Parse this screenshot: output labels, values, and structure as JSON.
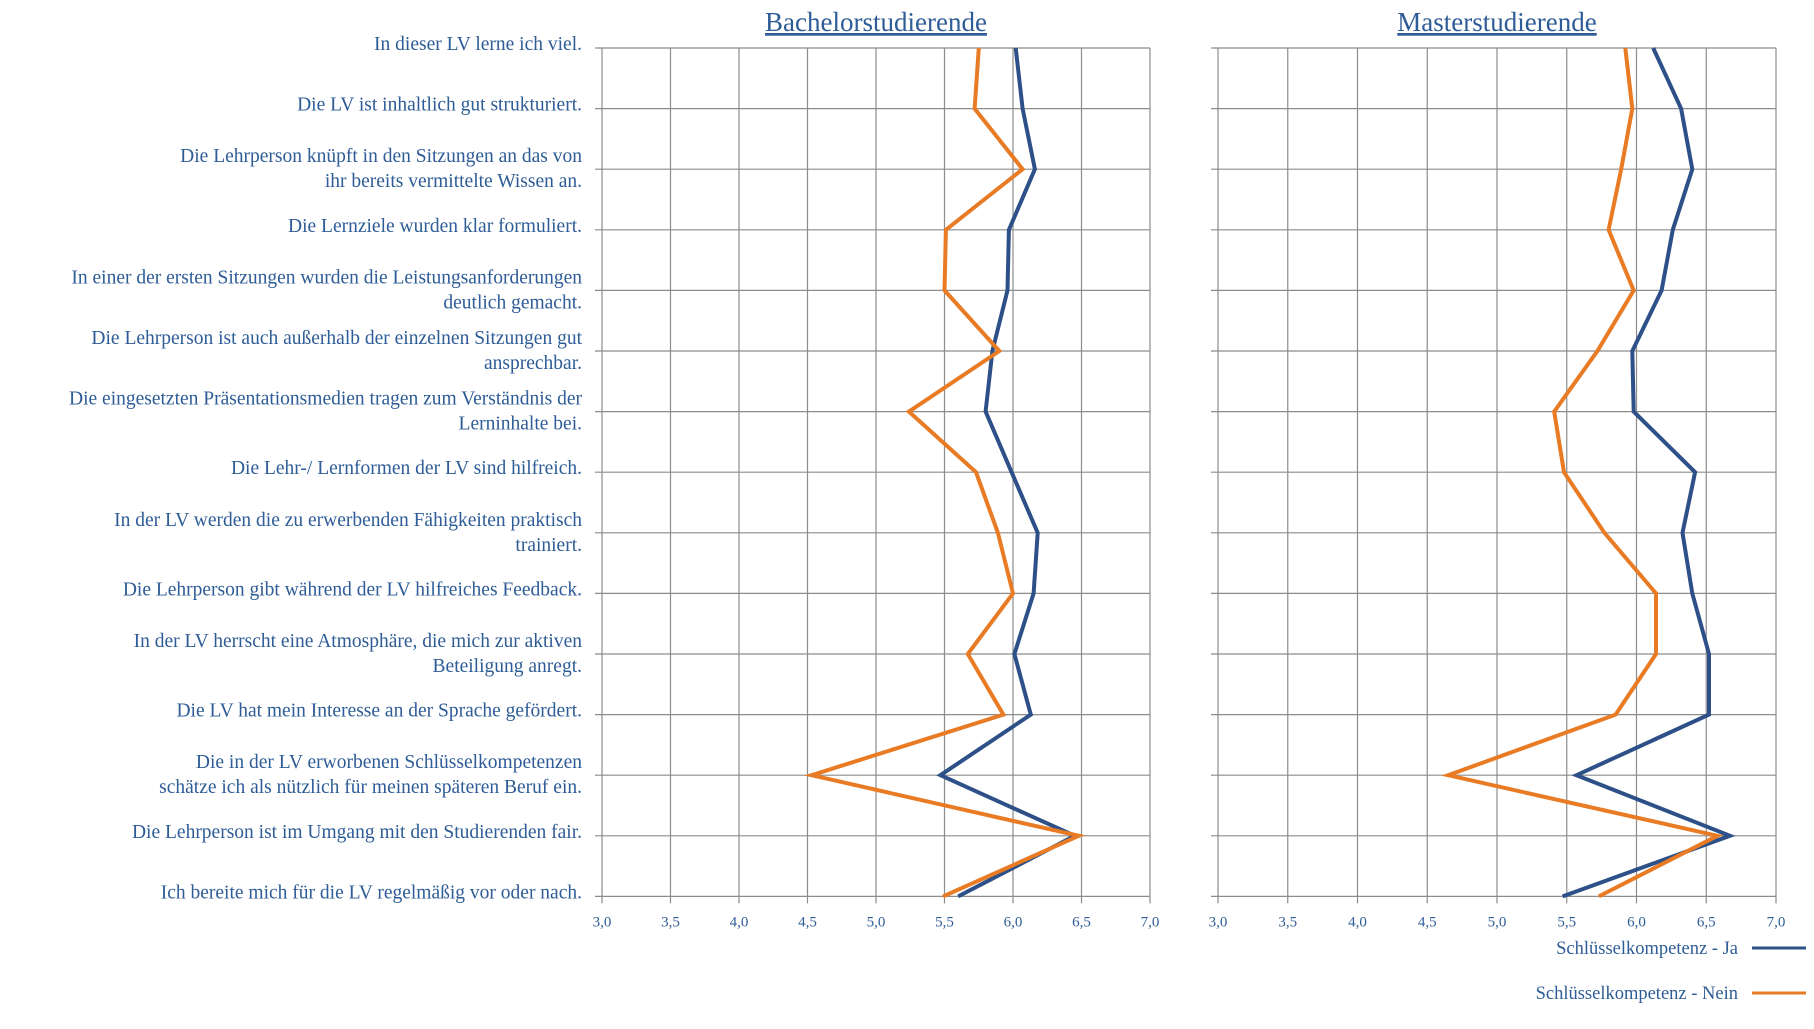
{
  "chart_data": [
    {
      "type": "line",
      "orientation": "horizontal-value-axis",
      "title": "Bachelorstudierende",
      "categories": [
        "In dieser LV lerne ich viel.",
        "Die LV ist inhaltlich gut strukturiert.",
        "Die Lehrperson knüpft in den Sitzungen an  das von ihr bereits vermittelte Wissen an.",
        "Die Lernziele wurden klar formuliert.",
        "In einer der ersten Sitzungen wurden die  Leistungsanforderungen deutlich gemacht.",
        "Die Lehrperson ist auch außerhalb der einzelnen Sitzungen gut ansprechbar.",
        "Die eingesetzten Präsentationsmedien tragen zum Verständnis der Lerninhalte bei.",
        "Die Lehr-/ Lernformen der LV sind hilfreich.",
        "In der LV  werden die zu erwerbenden Fähigkeiten praktisch trainiert.",
        "Die Lehrperson gibt während der LV  hilfreiches Feedback.",
        "In der LV  herrscht eine Atmosphäre, die mich zur aktiven Beteiligung anregt.",
        "Die LV hat mein Interesse an der Sprache gefördert.",
        "Die in der LV  erworbenen Schlüsselkompetenzen schätze ich als nützlich für meinen späteren Beruf ein.",
        "Die Lehrperson ist im Umgang mit den Studierenden fair.",
        "Ich bereite mich für die LV regelmäßig vor oder nach."
      ],
      "category_lines": [
        [
          "In dieser LV lerne ich viel."
        ],
        [
          "Die LV ist inhaltlich gut strukturiert."
        ],
        [
          "Die Lehrperson knüpft in den Sitzungen an  das von",
          "ihr bereits vermittelte Wissen an."
        ],
        [
          "Die Lernziele wurden klar formuliert."
        ],
        [
          "In einer der ersten Sitzungen wurden die  Leistungsanforderungen",
          "deutlich gemacht."
        ],
        [
          "Die Lehrperson ist auch außerhalb der einzelnen Sitzungen gut",
          "ansprechbar."
        ],
        [
          "Die eingesetzten Präsentationsmedien tragen zum Verständnis der",
          "Lerninhalte bei."
        ],
        [
          "Die Lehr-/ Lernformen der LV sind hilfreich."
        ],
        [
          "In der LV  werden die zu erwerbenden Fähigkeiten praktisch",
          "trainiert."
        ],
        [
          "Die Lehrperson gibt während der LV  hilfreiches Feedback."
        ],
        [
          "In der LV  herrscht eine Atmosphäre, die mich zur aktiven",
          "Beteiligung anregt."
        ],
        [
          "Die LV hat mein Interesse an der Sprache gefördert."
        ],
        [
          "Die in der LV  erworbenen Schlüsselkompetenzen",
          "schätze ich als nützlich für meinen späteren Beruf ein."
        ],
        [
          "Die Lehrperson ist im Umgang mit den Studierenden fair."
        ],
        [
          "Ich bereite mich für die LV regelmäßig vor oder nach."
        ]
      ],
      "xlim": [
        3.0,
        7.0
      ],
      "xticks": [
        "3,0",
        "3,5",
        "4,0",
        "4,5",
        "5,0",
        "5,5",
        "6,0",
        "6,5",
        "7,0"
      ],
      "grid": true,
      "series": [
        {
          "name": "Schlüsselkompetenz - Ja",
          "color": "#2e5088",
          "values": [
            6.02,
            6.07,
            6.16,
            5.97,
            5.96,
            5.85,
            5.8,
            5.99,
            6.18,
            6.15,
            6.01,
            6.13,
            5.47,
            6.45,
            5.6
          ]
        },
        {
          "name": "Schlüsselkompetenz - Nein",
          "color": "#e87b24",
          "values": [
            5.75,
            5.72,
            6.07,
            5.51,
            5.5,
            5.9,
            5.24,
            5.73,
            5.89,
            6.0,
            5.67,
            5.93,
            4.53,
            6.48,
            5.49
          ]
        }
      ]
    },
    {
      "type": "line",
      "orientation": "horizontal-value-axis",
      "title": "Masterstudierende",
      "xlim": [
        3.0,
        7.0
      ],
      "xticks": [
        "3,0",
        "3,5",
        "4,0",
        "4,5",
        "5,0",
        "5,5",
        "6,0",
        "6,5",
        "7,0"
      ],
      "grid": true,
      "series": [
        {
          "name": "Schlüsselkompetenz - Ja",
          "color": "#2e5088",
          "values": [
            6.12,
            6.32,
            6.4,
            6.26,
            6.18,
            5.97,
            5.98,
            6.42,
            6.33,
            6.4,
            6.52,
            6.52,
            5.57,
            6.67,
            5.47
          ]
        },
        {
          "name": "Schlüsselkompetenz - Nein",
          "color": "#e87b24",
          "values": [
            5.92,
            5.97,
            5.89,
            5.8,
            5.98,
            5.72,
            5.41,
            5.48,
            5.77,
            6.14,
            6.14,
            5.85,
            4.65,
            6.58,
            5.73
          ]
        }
      ]
    }
  ],
  "legend": {
    "position": "bottom-right",
    "items": [
      {
        "label": "Schlüsselkompetenz - Ja",
        "color": "#2e5088"
      },
      {
        "label": "Schlüsselkompetenz - Nein",
        "color": "#e87b24"
      }
    ]
  }
}
